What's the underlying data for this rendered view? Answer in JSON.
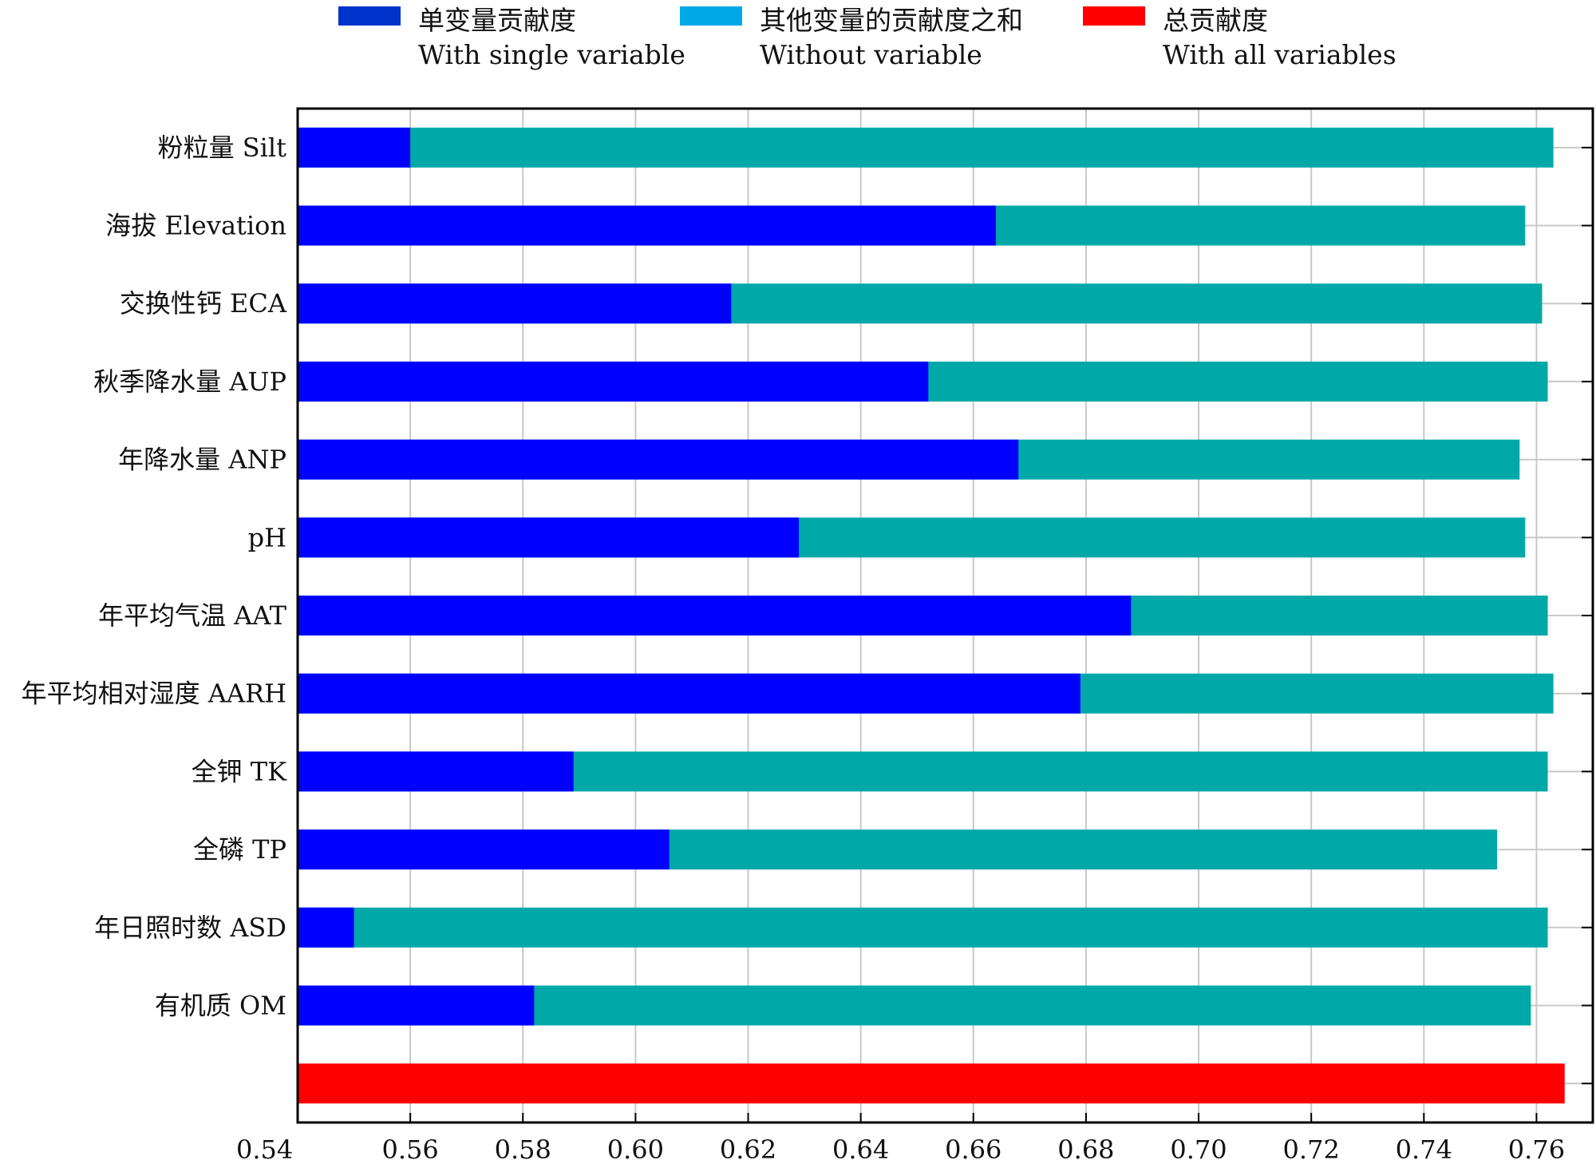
{
  "legend": [
    {
      "label_zh": "单变量贡献度",
      "label_en": "With single variable",
      "color": "#0033cc"
    },
    {
      "label_zh": "其他变量的贡献度之和",
      "label_en": "Without variable",
      "color": "#00a8e8"
    },
    {
      "label_zh": "总贡献度",
      "label_en": "With all variables",
      "color": "#ff0000"
    }
  ],
  "chart_data": {
    "type": "bar",
    "orientation": "horizontal",
    "xlim": [
      0.54,
      0.77
    ],
    "x_ticks": [
      "0.54",
      "0.56",
      "0.58",
      "0.60",
      "0.62",
      "0.64",
      "0.66",
      "0.68",
      "0.70",
      "0.72",
      "0.74",
      "0.76"
    ],
    "grid": true,
    "legend_position": "top",
    "categories": [
      "粉粒量 Silt",
      "海拔 Elevation",
      "交换性钙 ECA",
      "秋季降水量 AUP",
      "年降水量 ANP",
      "pH",
      "年平均气温 AAT",
      "年平均相对湿度 AARH",
      "全钾 TK",
      "全磷 TP",
      "年日照时数 ASD",
      "有机质 OM",
      ""
    ],
    "series": [
      {
        "name": "With single variable",
        "color": "#0000ff",
        "values": [
          0.56,
          0.664,
          0.617,
          0.652,
          0.668,
          0.629,
          0.688,
          0.679,
          0.589,
          0.606,
          0.55,
          0.582,
          null
        ]
      },
      {
        "name": "Without variable",
        "color": "#00a8a8",
        "values": [
          0.763,
          0.758,
          0.761,
          0.762,
          0.757,
          0.758,
          0.762,
          0.763,
          0.762,
          0.753,
          0.762,
          0.759,
          null
        ]
      },
      {
        "name": "With all variables",
        "color": "#ff0000",
        "values": [
          null,
          null,
          null,
          null,
          null,
          null,
          null,
          null,
          null,
          null,
          null,
          null,
          0.765
        ]
      }
    ]
  }
}
